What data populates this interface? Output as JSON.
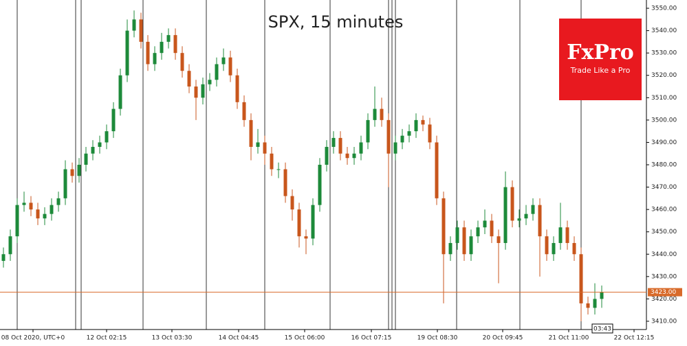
{
  "chart_data": {
    "type": "candlestick",
    "title": "SPX, 15 minutes",
    "open": [
      3437,
      3440,
      3448,
      3462,
      3463,
      3460,
      3456,
      3458,
      3462,
      3465,
      3478,
      3475,
      3480,
      3485,
      3488,
      3490,
      3495,
      3505,
      3520,
      3540,
      3545,
      3535,
      3525,
      3530,
      3535,
      3538,
      3530,
      3522,
      3515,
      3510,
      3516,
      3518,
      3525,
      3528,
      3520,
      3508,
      3500,
      3488,
      3490,
      3485,
      3478,
      3478,
      3466,
      3460,
      3448,
      3447,
      3462,
      3480,
      3488,
      3492,
      3485,
      3483,
      3485,
      3490,
      3500,
      3505,
      3500,
      3485,
      3490,
      3493,
      3495,
      3500,
      3498,
      3490,
      3465,
      3440,
      3445,
      3452,
      3440,
      3448,
      3452,
      3455,
      3448,
      3445,
      3470,
      3455,
      3456,
      3458,
      3462,
      3448,
      3440,
      3445,
      3452,
      3445,
      3440,
      3418,
      3416,
      3420
    ],
    "high": [
      3443,
      3451,
      3465,
      3468,
      3466,
      3463,
      3461,
      3465,
      3468,
      3482,
      3481,
      3483,
      3488,
      3491,
      3493,
      3498,
      3508,
      3523,
      3545,
      3549,
      3548,
      3538,
      3533,
      3539,
      3541,
      3541,
      3533,
      3525,
      3518,
      3519,
      3521,
      3528,
      3532,
      3531,
      3523,
      3511,
      3503,
      3496,
      3493,
      3488,
      3481,
      3481,
      3469,
      3463,
      3451,
      3465,
      3483,
      3491,
      3495,
      3495,
      3488,
      3488,
      3493,
      3503,
      3515,
      3510,
      3503,
      3493,
      3496,
      3498,
      3503,
      3502,
      3501,
      3493,
      3468,
      3448,
      3455,
      3455,
      3451,
      3455,
      3460,
      3458,
      3451,
      3477,
      3473,
      3460,
      3462,
      3465,
      3465,
      3451,
      3448,
      3463,
      3455,
      3448,
      3443,
      3421,
      3427,
      3426
    ],
    "low": [
      3434,
      3437,
      3445,
      3459,
      3457,
      3453,
      3453,
      3455,
      3459,
      3462,
      3472,
      3472,
      3477,
      3482,
      3485,
      3487,
      3492,
      3502,
      3517,
      3537,
      3532,
      3522,
      3522,
      3527,
      3532,
      3527,
      3519,
      3512,
      3500,
      3507,
      3513,
      3515,
      3522,
      3517,
      3505,
      3497,
      3482,
      3485,
      3480,
      3475,
      3474,
      3463,
      3455,
      3443,
      3440,
      3444,
      3459,
      3477,
      3485,
      3482,
      3480,
      3480,
      3482,
      3487,
      3497,
      3497,
      3470,
      3482,
      3487,
      3490,
      3492,
      3495,
      3487,
      3462,
      3418,
      3437,
      3442,
      3437,
      3437,
      3445,
      3449,
      3445,
      3427,
      3442,
      3452,
      3452,
      3453,
      3455,
      3430,
      3437,
      3437,
      3442,
      3442,
      3437,
      3410,
      3413,
      3413,
      3416
    ],
    "close": [
      3440,
      3448,
      3462,
      3463,
      3460,
      3456,
      3458,
      3462,
      3465,
      3478,
      3475,
      3480,
      3485,
      3488,
      3490,
      3495,
      3505,
      3520,
      3540,
      3545,
      3535,
      3525,
      3530,
      3535,
      3538,
      3530,
      3522,
      3515,
      3510,
      3516,
      3518,
      3525,
      3528,
      3520,
      3508,
      3500,
      3488,
      3490,
      3485,
      3478,
      3478,
      3466,
      3460,
      3448,
      3447,
      3462,
      3480,
      3488,
      3492,
      3485,
      3483,
      3485,
      3490,
      3500,
      3505,
      3500,
      3485,
      3490,
      3493,
      3495,
      3500,
      3498,
      3490,
      3465,
      3440,
      3445,
      3452,
      3440,
      3448,
      3452,
      3455,
      3448,
      3445,
      3470,
      3455,
      3456,
      3458,
      3462,
      3448,
      3440,
      3445,
      3452,
      3445,
      3440,
      3418,
      3416,
      3420,
      3423
    ],
    "up_color": "#1d8a3a",
    "down_color": "#c8561c",
    "xlim": [
      0,
      94
    ],
    "xticks": [
      {
        "value": 4.8,
        "label": "08 Oct 2020, UTC+0"
      },
      {
        "value": 15.5,
        "label": "12 Oct 02:15"
      },
      {
        "value": 25,
        "label": "13 Oct 03:30"
      },
      {
        "value": 34.7,
        "label": "14 Oct 04:45"
      },
      {
        "value": 44.3,
        "label": "15 Oct 06:00"
      },
      {
        "value": 54,
        "label": "16 Oct 07:15"
      },
      {
        "value": 63.6,
        "label": "19 Oct 08:30"
      },
      {
        "value": 73.1,
        "label": "20 Oct 09:45"
      },
      {
        "value": 82.7,
        "label": "21 Oct 11:00"
      },
      {
        "value": 92.2,
        "label": "22 Oct 12:15"
      }
    ],
    "ylim": [
      3406.3,
      3553.7
    ],
    "yticks": [
      {
        "value": 3410,
        "label": "3410.00"
      },
      {
        "value": 3420,
        "label": "3420.00"
      },
      {
        "value": 3430,
        "label": "3430.00"
      },
      {
        "value": 3440,
        "label": "3440.00"
      },
      {
        "value": 3450,
        "label": "3450.00"
      },
      {
        "value": 3460,
        "label": "3460.00"
      },
      {
        "value": 3470,
        "label": "3470.00"
      },
      {
        "value": 3480,
        "label": "3480.00"
      },
      {
        "value": 3490,
        "label": "3490.00"
      },
      {
        "value": 3500,
        "label": "3500.00"
      },
      {
        "value": 3510,
        "label": "3510.00"
      },
      {
        "value": 3520,
        "label": "3520.00"
      },
      {
        "value": 3530,
        "label": "3530.00"
      },
      {
        "value": 3540,
        "label": "3540.00"
      },
      {
        "value": 3550,
        "label": "3550.00"
      }
    ],
    "last_price": {
      "value": 3423,
      "label": "3423.00"
    },
    "last_price_color": "#d86a2a",
    "timer": "03:43",
    "logo": {
      "brand": "FxPro",
      "slogan": "Trade Like a Pro"
    }
  }
}
